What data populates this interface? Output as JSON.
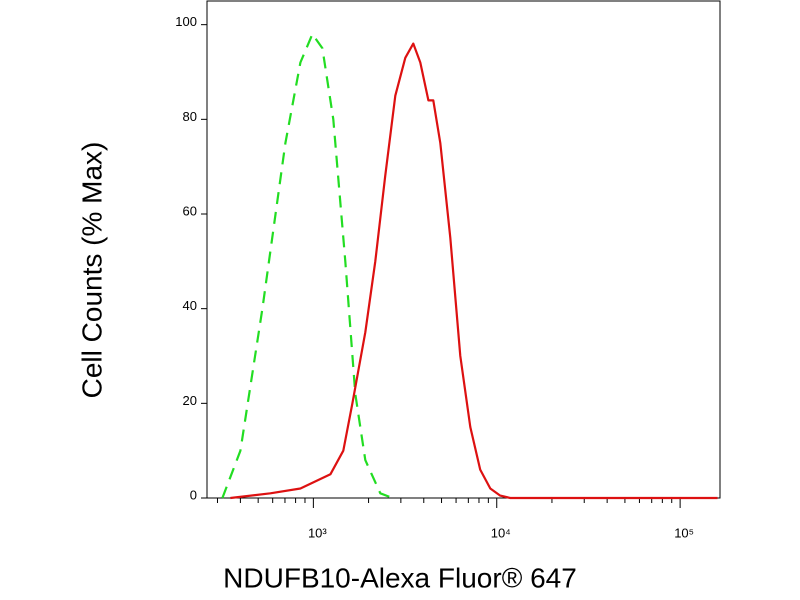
{
  "chart_data": {
    "type": "line",
    "x_label": "NDUFB10-Alexa Fluor® 647",
    "y_label": "Cell Counts (% Max)",
    "xscale": "log",
    "xlim": [
      263,
      165000
    ],
    "ylim": [
      0,
      105
    ],
    "xticks": [
      {
        "value": 1000,
        "label": "10³"
      },
      {
        "value": 10000,
        "label": "10⁴"
      },
      {
        "value": 100000,
        "label": "10⁵"
      }
    ],
    "xminorticks": [
      300,
      400,
      500,
      600,
      700,
      800,
      900,
      2000,
      3000,
      4000,
      5000,
      6000,
      7000,
      8000,
      9000,
      20000,
      30000,
      40000,
      50000,
      60000,
      70000,
      80000,
      90000
    ],
    "yticks": [
      0,
      20,
      40,
      60,
      80,
      100
    ],
    "series": [
      {
        "color": "#22dd22",
        "dash": true,
        "x": [
          319,
          400,
          527,
          704,
          850,
          988,
          1120,
          1285,
          1494,
          1694,
          1920,
          2318,
          2697
        ],
        "values": [
          0,
          10,
          40,
          75,
          92,
          98,
          95,
          80,
          50,
          22,
          8,
          1,
          0
        ]
      },
      {
        "color": "#dd1111",
        "dash": false,
        "x": [
          353,
          583,
          850,
          1238,
          1457,
          1632,
          1920,
          2177,
          2466,
          2797,
          3171,
          3508,
          3830,
          4237,
          4508,
          4922,
          5580,
          6327,
          7178,
          8128,
          9226,
          10450,
          11850,
          160000
        ],
        "values": [
          0,
          1,
          2,
          5,
          10,
          20,
          35,
          50,
          68,
          85,
          93,
          96,
          92,
          84,
          84,
          75,
          55,
          30,
          15,
          6,
          2,
          0.5,
          0,
          0
        ]
      }
    ]
  }
}
